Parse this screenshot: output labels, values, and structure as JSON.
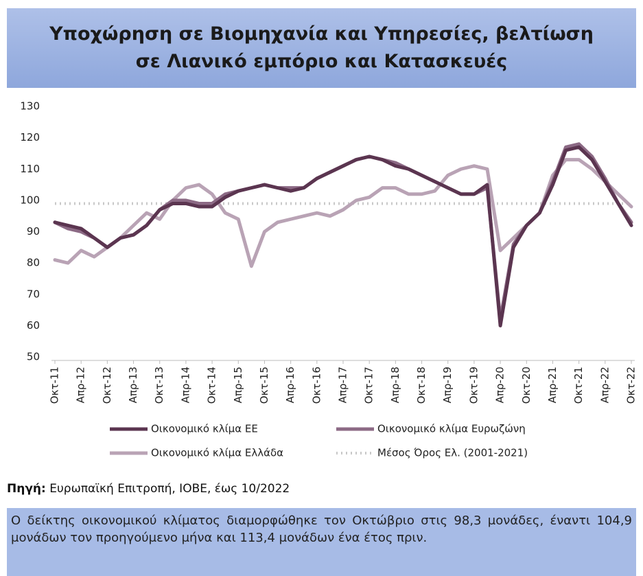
{
  "chart_data": {
    "type": "line",
    "title": "Υποχώρηση σε Βιομηχανία και Υπηρεσίες, βελτίωση σε Λιανικό εμπόριο και Κατασκευές",
    "categories": [
      "Οκτ-11",
      null,
      "Απρ-12",
      null,
      "Οκτ-12",
      null,
      "Απρ-13",
      null,
      "Οκτ-13",
      null,
      "Απρ-14",
      null,
      "Οκτ-14",
      null,
      "Απρ-15",
      null,
      "Οκτ-15",
      null,
      "Απρ-16",
      null,
      "Οκτ-16",
      null,
      "Απρ-17",
      null,
      "Οκτ-17",
      null,
      "Απρ-18",
      null,
      "Οκτ-18",
      null,
      "Απρ-19",
      null,
      "Οκτ-19",
      null,
      "Απρ-20",
      null,
      "Οκτ-20",
      null,
      "Απρ-21",
      null,
      "Οκτ-21",
      null,
      "Απρ-22",
      null,
      "Οκτ-22"
    ],
    "series": [
      {
        "name": "Οικονομικό κλίμα ΕΕ",
        "color": "#5b3550",
        "style": "solid",
        "values": [
          93,
          92,
          91,
          88,
          85,
          88,
          89,
          92,
          97,
          99,
          99,
          98,
          98,
          101,
          103,
          104,
          105,
          104,
          103,
          104,
          107,
          109,
          111,
          113,
          114,
          113,
          111,
          110,
          108,
          106,
          104,
          102,
          102,
          105,
          60,
          85,
          92,
          96,
          105,
          116,
          117,
          113,
          106,
          99,
          92
        ]
      },
      {
        "name": "Οικονομικό κλίμα Ευρωζώνη",
        "color": "#8c6a85",
        "style": "solid",
        "values": [
          93,
          91,
          90,
          88,
          85,
          88,
          89,
          92,
          97,
          100,
          100,
          99,
          99,
          102,
          103,
          104,
          105,
          104,
          104,
          104,
          107,
          109,
          111,
          113,
          114,
          113,
          112,
          110,
          108,
          106,
          104,
          102,
          102,
          104,
          62,
          86,
          92,
          96,
          106,
          117,
          118,
          114,
          107,
          99,
          93
        ]
      },
      {
        "name": "Οικονομικό κλίμα Ελλάδα",
        "color": "#b9a3b5",
        "style": "solid",
        "values": [
          81,
          80,
          84,
          82,
          85,
          88,
          92,
          96,
          94,
          100,
          104,
          105,
          102,
          96,
          94,
          79,
          90,
          93,
          94,
          95,
          96,
          95,
          97,
          100,
          101,
          104,
          104,
          102,
          102,
          103,
          108,
          110,
          111,
          110,
          84,
          88,
          92,
          96,
          108,
          113,
          113,
          110,
          106,
          102,
          98
        ]
      },
      {
        "name": "Μέσος Όρος Ελ. (2001-2021)",
        "color": "#c8c8c8",
        "style": "dotted",
        "values": [
          99,
          99,
          99,
          99,
          99,
          99,
          99,
          99,
          99,
          99,
          99,
          99,
          99,
          99,
          99,
          99,
          99,
          99,
          99,
          99,
          99,
          99,
          99,
          99,
          99,
          99,
          99,
          99,
          99,
          99,
          99,
          99,
          99,
          99,
          99,
          99,
          99,
          99,
          99,
          99,
          99,
          99,
          99,
          99,
          99
        ]
      }
    ],
    "ylim": [
      50,
      130
    ],
    "yticks": [
      50,
      60,
      70,
      80,
      90,
      100,
      110,
      120,
      130
    ],
    "grid": false
  },
  "source_label": "Πηγή:",
  "source_text": "Ευρωπαϊκή Επιτροπή, ΙΟΒΕ, έως 10/2022",
  "summary": "Ο δείκτης οικονομικού κλίματος διαμορφώθηκε τον Οκτώβριο στις 98,3 μονάδες, έναντι 104,9 μονάδων τον προηγούμενο μήνα και 113,4 μονάδων ένα έτος πριν."
}
